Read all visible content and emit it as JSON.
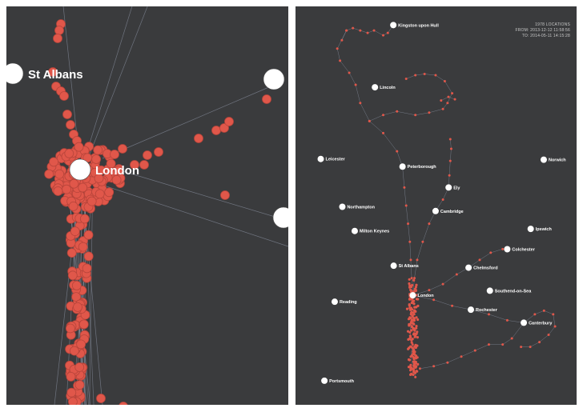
{
  "colors": {
    "background": "#3a3b3d",
    "point": "#e0574a",
    "point_stroke": "#b8453b",
    "track": "#9aa2b5",
    "city": "#ffffff"
  },
  "zoomed": {
    "cities": [
      {
        "name": "St Albans",
        "lon": -0.336,
        "lat": 51.752,
        "show_label": true
      },
      {
        "name": "London",
        "lon": -0.128,
        "lat": 51.507,
        "show_label": true
      },
      {
        "name": "",
        "lon": 0.479,
        "lat": 51.736,
        "show_label": false
      },
      {
        "name": "",
        "lon": 0.708,
        "lat": 51.432,
        "show_label": false
      }
    ]
  },
  "overview": {
    "summary": {
      "count_line": "1978 LOCATIONS",
      "from_line": "FROM: 2013-12-12 11:58:56",
      "to_line": "TO: 2014-05-11 14:15:28"
    },
    "cities": [
      {
        "name": "Kingston upon Hull",
        "lon": -0.34,
        "lat": 53.745
      },
      {
        "name": "Lincoln",
        "lon": -0.54,
        "lat": 53.23
      },
      {
        "name": "Leicester",
        "lon": -1.13,
        "lat": 52.636
      },
      {
        "name": "Peterborough",
        "lon": -0.24,
        "lat": 52.573
      },
      {
        "name": "Norwich",
        "lon": 1.297,
        "lat": 52.63
      },
      {
        "name": "Ely",
        "lon": 0.262,
        "lat": 52.4
      },
      {
        "name": "Northampton",
        "lon": -0.895,
        "lat": 52.24
      },
      {
        "name": "Cambridge",
        "lon": 0.12,
        "lat": 52.205
      },
      {
        "name": "Milton Keynes",
        "lon": -0.76,
        "lat": 52.04
      },
      {
        "name": "Ipswich",
        "lon": 1.155,
        "lat": 52.057
      },
      {
        "name": "Colchester",
        "lon": 0.9,
        "lat": 51.889
      },
      {
        "name": "St Albans",
        "lon": -0.336,
        "lat": 51.752
      },
      {
        "name": "Chelmsford",
        "lon": 0.479,
        "lat": 51.736
      },
      {
        "name": "London",
        "lon": -0.128,
        "lat": 51.507
      },
      {
        "name": "Southend-on-Sea",
        "lon": 0.711,
        "lat": 51.545
      },
      {
        "name": "Reading",
        "lon": -0.978,
        "lat": 51.454
      },
      {
        "name": "Rochester",
        "lon": 0.504,
        "lat": 51.388
      },
      {
        "name": "Canterbury",
        "lon": 1.08,
        "lat": 51.28
      },
      {
        "name": "Portsmouth",
        "lon": -1.09,
        "lat": 50.8
      }
    ],
    "tracks": [
      [
        [
          -0.9,
          53.62
        ],
        [
          -0.85,
          53.7
        ],
        [
          -0.78,
          53.72
        ],
        [
          -0.7,
          53.7
        ],
        [
          -0.62,
          53.68
        ],
        [
          -0.55,
          53.7
        ],
        [
          -0.45,
          53.66
        ],
        [
          -0.4,
          53.68
        ],
        [
          -0.34,
          53.745
        ]
      ],
      [
        [
          -0.85,
          53.7
        ],
        [
          -0.95,
          53.55
        ],
        [
          -0.92,
          53.45
        ],
        [
          -0.82,
          53.35
        ],
        [
          -0.75,
          53.25
        ],
        [
          -0.7,
          53.1
        ],
        [
          -0.6,
          52.95
        ],
        [
          -0.45,
          52.85
        ],
        [
          -0.3,
          52.7
        ],
        [
          -0.24,
          52.573
        ]
      ],
      [
        [
          -0.6,
          52.95
        ],
        [
          -0.45,
          53.0
        ],
        [
          -0.3,
          53.03
        ],
        [
          -0.1,
          53.0
        ],
        [
          0.05,
          53.02
        ],
        [
          0.2,
          53.05
        ],
        [
          0.25,
          53.1
        ],
        [
          0.3,
          53.18
        ],
        [
          0.22,
          53.28
        ],
        [
          0.12,
          53.33
        ],
        [
          0.0,
          53.34
        ],
        [
          -0.1,
          53.33
        ],
        [
          -0.2,
          53.3
        ]
      ],
      [
        [
          0.18,
          53.12
        ],
        [
          0.26,
          53.15
        ],
        [
          0.33,
          53.13
        ]
      ],
      [
        [
          -0.24,
          52.573
        ],
        [
          -0.22,
          52.4
        ],
        [
          -0.2,
          52.25
        ],
        [
          -0.18,
          52.1
        ],
        [
          -0.16,
          51.95
        ],
        [
          -0.15,
          51.8
        ],
        [
          -0.14,
          51.65
        ],
        [
          -0.128,
          51.507
        ]
      ],
      [
        [
          0.262,
          52.4
        ],
        [
          0.27,
          52.5
        ],
        [
          0.28,
          52.62
        ],
        [
          0.29,
          52.72
        ],
        [
          0.28,
          52.8
        ]
      ],
      [
        [
          0.262,
          52.4
        ],
        [
          0.2,
          52.3
        ],
        [
          0.12,
          52.205
        ],
        [
          0.05,
          52.1
        ],
        [
          -0.02,
          51.95
        ],
        [
          -0.08,
          51.8
        ],
        [
          -0.11,
          51.65
        ],
        [
          -0.128,
          51.507
        ]
      ],
      [
        [
          -0.128,
          51.507
        ],
        [
          0.05,
          51.55
        ],
        [
          0.2,
          51.6
        ],
        [
          0.35,
          51.68
        ],
        [
          0.479,
          51.736
        ],
        [
          0.6,
          51.8
        ],
        [
          0.72,
          51.86
        ],
        [
          0.85,
          51.89
        ],
        [
          0.9,
          51.889
        ]
      ],
      [
        [
          -0.128,
          51.507
        ],
        [
          0.1,
          51.47
        ],
        [
          0.3,
          51.42
        ],
        [
          0.504,
          51.388
        ]
      ],
      [
        [
          -0.15,
          51.4
        ],
        [
          -0.14,
          51.3
        ],
        [
          -0.16,
          51.2
        ],
        [
          -0.13,
          51.1
        ],
        [
          -0.15,
          51.0
        ],
        [
          -0.12,
          50.9
        ],
        [
          -0.1,
          50.83
        ]
      ],
      [
        [
          -0.05,
          50.9
        ],
        [
          0.1,
          50.92
        ],
        [
          0.25,
          50.95
        ],
        [
          0.4,
          51.0
        ],
        [
          0.55,
          51.05
        ],
        [
          0.7,
          51.1
        ],
        [
          0.85,
          51.1
        ],
        [
          0.95,
          51.15
        ],
        [
          1.08,
          51.28
        ]
      ],
      [
        [
          1.08,
          51.28
        ],
        [
          1.2,
          51.35
        ],
        [
          1.3,
          51.38
        ],
        [
          1.4,
          51.35
        ],
        [
          1.42,
          51.25
        ],
        [
          1.35,
          51.18
        ],
        [
          1.25,
          51.12
        ],
        [
          1.15,
          51.08
        ],
        [
          1.05,
          51.08
        ]
      ],
      [
        [
          0.504,
          51.388
        ],
        [
          0.7,
          51.35
        ],
        [
          0.9,
          51.3
        ],
        [
          1.08,
          51.28
        ]
      ]
    ]
  }
}
